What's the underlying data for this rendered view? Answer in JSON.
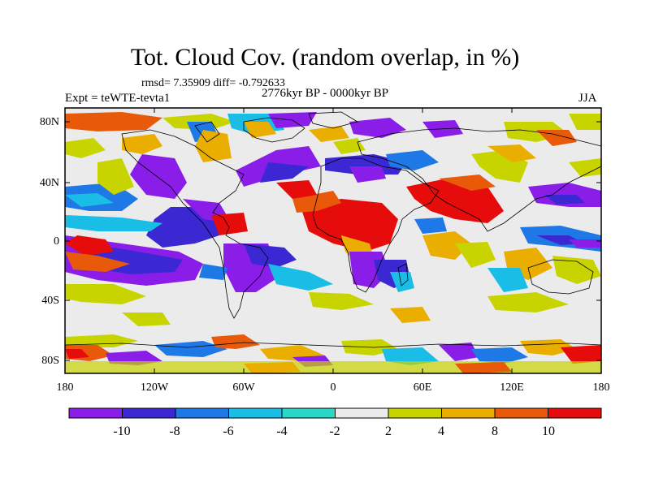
{
  "figure": {
    "title": "Tot. Cloud Cov. (random overlap, in %)",
    "stats": "rmsd= 7.35909 diff= -0.792633",
    "experiment": "Expt = teWTE-tevta1",
    "period": "2776kyr BP - 0000kyr BP",
    "season": "JJA"
  },
  "axes": {
    "lon_ticks": [
      "180",
      "120W",
      "60W",
      "0",
      "60E",
      "120E",
      "180"
    ],
    "lat_ticks": [
      "80N",
      "40N",
      "0",
      "40S",
      "80S"
    ]
  },
  "colorbar": {
    "levels": [
      "-10",
      "-8",
      "-6",
      "-4",
      "-2",
      "2",
      "4",
      "8",
      "10"
    ],
    "colors": [
      "#8a1ee8",
      "#3c28d2",
      "#1e78e6",
      "#19bde6",
      "#2ad7c4",
      "#ebebeb",
      "#c8d400",
      "#eaae00",
      "#e85a0a",
      "#e60c0c"
    ]
  }
}
